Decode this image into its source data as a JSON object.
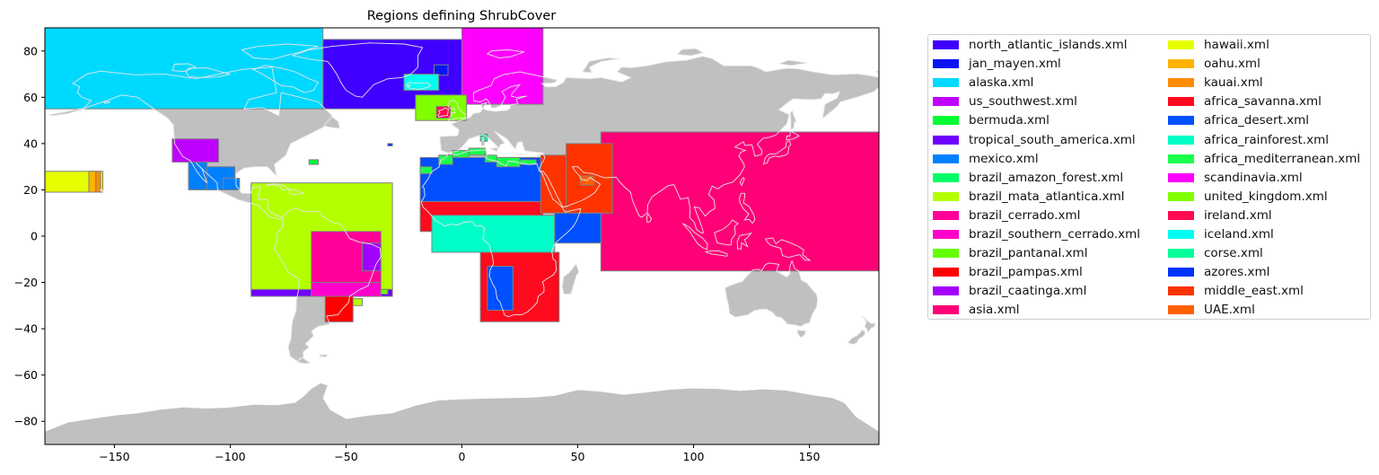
{
  "chart_data": {
    "type": "map",
    "title": "Regions defining ShrubCover",
    "xlim": [
      -180,
      180
    ],
    "ylim": [
      -90,
      90
    ],
    "x_ticks": [
      -150,
      -100,
      -50,
      0,
      50,
      100,
      150
    ],
    "y_ticks": [
      -80,
      -60,
      -40,
      -20,
      0,
      20,
      40,
      60,
      80
    ],
    "land_color": "#c0c0c0",
    "coastline_color": "#e6e6e6",
    "region_edge_color": "#808080",
    "legend_position": "outside right",
    "legend_columns": 2,
    "regions": [
      {
        "name": "north_atlantic_islands.xml",
        "color": "#4000ff",
        "boxes": [
          [
            -60,
            0,
            55,
            85
          ]
        ]
      },
      {
        "name": "jan_mayen.xml",
        "color": "#0a14f5",
        "boxes": [
          [
            -12,
            -6,
            69.5,
            74
          ]
        ]
      },
      {
        "name": "alaska.xml",
        "color": "#00d9ff",
        "boxes": [
          [
            -180,
            -60,
            55,
            90
          ]
        ]
      },
      {
        "name": "us_southwest.xml",
        "color": "#c000ff",
        "boxes": [
          [
            -125,
            -105,
            32,
            42
          ]
        ]
      },
      {
        "name": "bermuda.xml",
        "color": "#00ff33",
        "boxes": [
          [
            -66,
            -62,
            31,
            33
          ]
        ]
      },
      {
        "name": "tropical_south_america.xml",
        "color": "#7000ff",
        "boxes": [
          [
            -91,
            -30,
            -26,
            -23
          ]
        ]
      },
      {
        "name": "mexico.xml",
        "color": "#0080ff",
        "boxes": [
          [
            -118,
            -110,
            20,
            32
          ],
          [
            -110,
            -98,
            20,
            30
          ],
          [
            -103,
            -96,
            20,
            25
          ]
        ]
      },
      {
        "name": "brazil_amazon_forest.xml",
        "color": "#00ff66",
        "boxes": [
          [
            -60,
            -56,
            -21,
            -16
          ]
        ]
      },
      {
        "name": "brazil_mata_atlantica.xml",
        "color": "#b3ff00",
        "boxes": [
          [
            -91,
            -30,
            -23,
            23
          ],
          [
            -47,
            -43,
            -30,
            -27
          ]
        ]
      },
      {
        "name": "brazil_cerrado.xml",
        "color": "#ff0099",
        "boxes": [
          [
            -65,
            -35,
            -20,
            2
          ]
        ]
      },
      {
        "name": "brazil_southern_cerrado.xml",
        "color": "#ff00cc",
        "boxes": [
          [
            -65,
            -35,
            -26,
            -20
          ]
        ]
      },
      {
        "name": "brazil_pantanal.xml",
        "color": "#66ff00",
        "boxes": [
          [
            -35,
            -32,
            -25,
            -23
          ]
        ]
      },
      {
        "name": "brazil_pampas.xml",
        "color": "#ff0000",
        "boxes": [
          [
            -59,
            -47,
            -37,
            -26
          ]
        ]
      },
      {
        "name": "brazil_caatinga.xml",
        "color": "#a300ff",
        "boxes": [
          [
            -43,
            -35,
            -15,
            -3
          ]
        ]
      },
      {
        "name": "asia.xml",
        "color": "#ff0077",
        "boxes": [
          [
            60,
            180,
            -15,
            45
          ]
        ]
      },
      {
        "name": "hawaii.xml",
        "color": "#e6ff00",
        "boxes": [
          [
            -180,
            -155,
            19,
            28
          ]
        ]
      },
      {
        "name": "oahu.xml",
        "color": "#ffb300",
        "boxes": [
          [
            -161,
            -158,
            19,
            28
          ]
        ]
      },
      {
        "name": "kauai.xml",
        "color": "#ff8c00",
        "boxes": [
          [
            -158,
            -156,
            19,
            28
          ]
        ]
      },
      {
        "name": "africa_savanna.xml",
        "color": "#ff0a1e",
        "boxes": [
          [
            -18,
            35,
            2,
            15
          ],
          [
            8,
            42,
            -37,
            -7
          ]
        ]
      },
      {
        "name": "africa_desert.xml",
        "color": "#0050ff",
        "boxes": [
          [
            -18,
            35,
            15,
            34
          ],
          [
            40,
            60,
            -3,
            10
          ],
          [
            11,
            22,
            -32,
            -13
          ]
        ]
      },
      {
        "name": "africa_rainforest.xml",
        "color": "#00ffc8",
        "boxes": [
          [
            -13,
            40,
            -7,
            9
          ],
          [
            8,
            11,
            41,
            44
          ]
        ]
      },
      {
        "name": "africa_mediterranean.xml",
        "color": "#1aff4d",
        "boxes": [
          [
            -18,
            -13,
            27,
            30
          ],
          [
            -10,
            -4,
            31,
            35
          ],
          [
            -4,
            3,
            34,
            37
          ],
          [
            3,
            10,
            35,
            38
          ],
          [
            10,
            15,
            32,
            35
          ],
          [
            15,
            25,
            30,
            34
          ],
          [
            25,
            32,
            31,
            33
          ]
        ]
      },
      {
        "name": "scandinavia.xml",
        "color": "#ff00ff",
        "boxes": [
          [
            0,
            35,
            57,
            90
          ]
        ]
      },
      {
        "name": "united_kingdom.xml",
        "color": "#80ff00",
        "boxes": [
          [
            -20,
            2,
            50,
            61
          ]
        ]
      },
      {
        "name": "ireland.xml",
        "color": "#ff0a50",
        "boxes": [
          [
            -11,
            -5,
            51,
            56
          ]
        ]
      },
      {
        "name": "iceland.xml",
        "color": "#00fff2",
        "boxes": [
          [
            -25,
            -10,
            63,
            70
          ]
        ]
      },
      {
        "name": "corse.xml",
        "color": "#00ff99",
        "boxes": [
          [
            8.5,
            10,
            41,
            43
          ]
        ]
      },
      {
        "name": "azores.xml",
        "color": "#0033ff",
        "boxes": [
          [
            -32,
            -30,
            39,
            40
          ]
        ]
      },
      {
        "name": "middle_east.xml",
        "color": "#ff3300",
        "boxes": [
          [
            34,
            63,
            10,
            35
          ],
          [
            45,
            65,
            10,
            40
          ]
        ]
      },
      {
        "name": "UAE.xml",
        "color": "#ff6000",
        "boxes": [
          [
            51,
            57,
            22,
            26
          ]
        ]
      }
    ]
  }
}
